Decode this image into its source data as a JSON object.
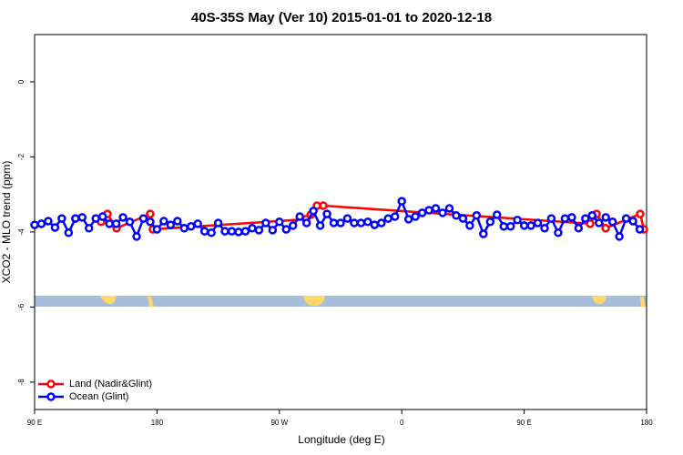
{
  "chart_data": {
    "type": "line",
    "title": "40S-35S May (Ver 10)   2015-01-01 to 2020-12-18",
    "x_label": "Longitude (deg E)",
    "y_label": "XCO2 - MLO trend (ppm)",
    "xlim": [
      90,
      540
    ],
    "ylim": [
      -8.73,
      1.26
    ],
    "xticks": [
      {
        "value": 90,
        "label": "90 E"
      },
      {
        "value": 180,
        "label": "180"
      },
      {
        "value": 270,
        "label": "90 W"
      },
      {
        "value": 360,
        "label": "0"
      },
      {
        "value": 450,
        "label": "90 E"
      },
      {
        "value": 540,
        "label": "180"
      }
    ],
    "yticks": [
      0,
      -2,
      -4,
      -6,
      -8
    ],
    "legend": "bottom-left",
    "series": [
      {
        "name": "Land (Nadir&Glint)",
        "color": "#ff0000",
        "x": [
          138.9,
          143.6,
          150.3,
          175,
          177,
          289.6,
          293,
          297.6,
          302.3,
          498.5,
          503.2,
          509.9,
          535.3,
          538
        ],
        "values": [
          -3.73,
          -3.52,
          -3.9,
          -3.52,
          -3.93,
          -3.66,
          -3.54,
          -3.3,
          -3.3,
          -3.78,
          -3.52,
          -3.9,
          -3.52,
          -3.93
        ]
      },
      {
        "name": "Ocean (Glint)",
        "color": "#0000ff",
        "x": [
          90,
          95,
          100,
          105,
          110,
          115,
          120,
          125,
          130,
          135,
          140,
          145,
          150,
          155,
          160,
          165,
          170,
          175,
          180,
          185,
          190,
          195,
          200,
          205,
          210,
          215,
          220,
          225,
          230,
          235,
          240,
          245,
          250,
          255,
          260,
          265,
          270,
          275,
          280,
          285,
          290,
          295,
          300,
          305,
          310,
          315,
          320,
          325,
          330,
          335,
          340,
          345,
          350,
          355,
          360,
          365,
          370,
          375,
          380,
          385,
          390,
          395,
          400,
          405,
          410,
          415,
          420,
          425,
          430,
          435,
          440,
          445,
          450,
          455,
          460,
          465,
          470,
          475,
          480,
          485,
          490,
          495,
          500,
          505,
          510,
          515,
          520,
          525,
          530,
          535
        ],
        "values": [
          -3.81,
          -3.78,
          -3.71,
          -3.88,
          -3.64,
          -4.02,
          -3.64,
          -3.61,
          -3.9,
          -3.64,
          -3.59,
          -3.78,
          -3.78,
          -3.61,
          -3.73,
          -4.12,
          -3.64,
          -3.73,
          -3.93,
          -3.71,
          -3.81,
          -3.71,
          -3.9,
          -3.85,
          -3.78,
          -3.98,
          -4.02,
          -3.76,
          -3.98,
          -3.98,
          -4.0,
          -3.98,
          -3.9,
          -3.95,
          -3.76,
          -3.95,
          -3.73,
          -3.93,
          -3.83,
          -3.59,
          -3.76,
          -3.44,
          -3.83,
          -3.52,
          -3.76,
          -3.76,
          -3.64,
          -3.76,
          -3.76,
          -3.73,
          -3.81,
          -3.76,
          -3.64,
          -3.59,
          -3.18,
          -3.66,
          -3.59,
          -3.49,
          -3.42,
          -3.37,
          -3.49,
          -3.37,
          -3.56,
          -3.64,
          -3.83,
          -3.56,
          -4.05,
          -3.73,
          -3.54,
          -3.85,
          -3.85,
          -3.68,
          -3.83,
          -3.83,
          -3.76,
          -3.9,
          -3.64,
          -4.02,
          -3.64,
          -3.61,
          -3.9,
          -3.64,
          -3.56,
          -3.76,
          -3.61,
          -3.73,
          -4.12,
          -3.64,
          -3.71,
          -3.93
        ]
      }
    ]
  }
}
